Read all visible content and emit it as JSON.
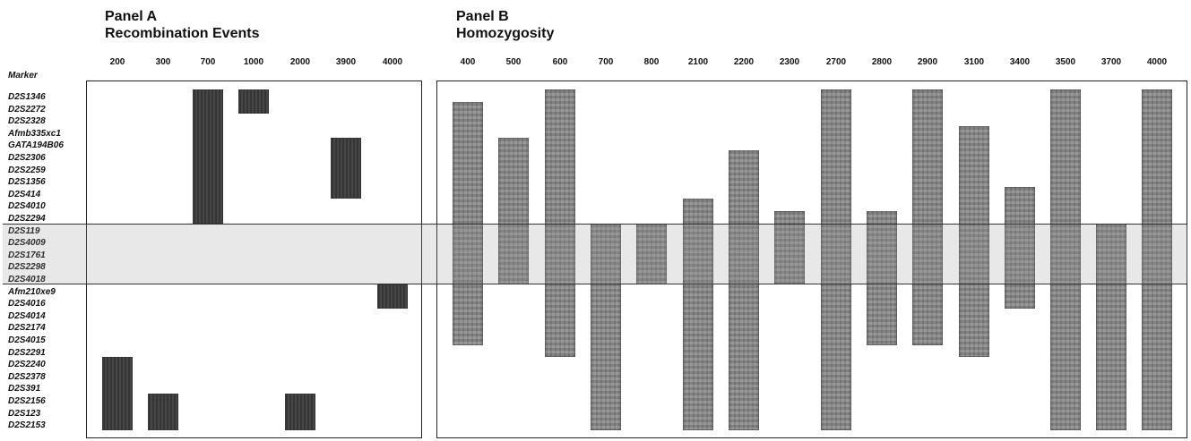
{
  "panel_a": {
    "label": "Panel A",
    "subtitle": "Recombination Events",
    "columns": [
      "200",
      "300",
      "700",
      "1000",
      "2000",
      "3900",
      "4000"
    ],
    "events": [
      {
        "column": "200",
        "from": "D2S2240",
        "to": "D2S2153"
      },
      {
        "column": "300",
        "from": "D2S2156",
        "to": "D2S2153"
      },
      {
        "column": "700",
        "from": "D2S1346",
        "to": "D2S2294"
      },
      {
        "column": "1000",
        "from": "D2S1346",
        "to": "D2S2272"
      },
      {
        "column": "2000",
        "from": "D2S2156",
        "to": "D2S2153"
      },
      {
        "column": "3900",
        "from": "GATA194B06",
        "to": "D2S414"
      },
      {
        "column": "4000",
        "from": "Afm210xe9",
        "to": "D2S4016"
      }
    ]
  },
  "panel_b": {
    "label": "Panel B",
    "subtitle": "Homozygosity",
    "columns": [
      "400",
      "500",
      "600",
      "700",
      "800",
      "2100",
      "2200",
      "2300",
      "2700",
      "2800",
      "2900",
      "3100",
      "3400",
      "3500",
      "3700",
      "4000"
    ],
    "segments": [
      {
        "column": "400",
        "from": "D2S2272",
        "to": "D2S4015"
      },
      {
        "column": "500",
        "from": "GATA194B06",
        "to": "D2S4018"
      },
      {
        "column": "600",
        "from": "D2S1346",
        "to": "D2S2291"
      },
      {
        "column": "700",
        "from": "D2S119",
        "to": "D2S2153"
      },
      {
        "column": "800",
        "from": "D2S119",
        "to": "D2S4018"
      },
      {
        "column": "2100",
        "from": "D2S4010",
        "to": "D2S2153"
      },
      {
        "column": "2200",
        "from": "D2S2306",
        "to": "D2S2153"
      },
      {
        "column": "2300",
        "from": "D2S2294",
        "to": "D2S4018"
      },
      {
        "column": "2700",
        "from": "D2S1346",
        "to": "D2S2153"
      },
      {
        "column": "2800",
        "from": "D2S2294",
        "to": "D2S4015"
      },
      {
        "column": "2900",
        "from": "D2S1346",
        "to": "D2S4015"
      },
      {
        "column": "3100",
        "from": "Afmb335xc1",
        "to": "D2S2291"
      },
      {
        "column": "3400",
        "from": "D2S414",
        "to": "D2S4016"
      },
      {
        "column": "3500",
        "from": "D2S1346",
        "to": "D2S2153"
      },
      {
        "column": "3700",
        "from": "D2S119",
        "to": "D2S2153"
      },
      {
        "column": "4000",
        "from": "D2S1346",
        "to": "D2S2153"
      }
    ]
  },
  "marker_header": "Marker",
  "markers": [
    "D2S1346",
    "D2S2272",
    "D2S2328",
    "Afmb335xc1",
    "GATA194B06",
    "D2S2306",
    "D2S2259",
    "D2S1356",
    "D2S414",
    "D2S4010",
    "D2S2294",
    "D2S119",
    "D2S4009",
    "D2S1761",
    "D2S2298",
    "D2S4018",
    "Afm210xe9",
    "D2S4016",
    "D2S4014",
    "D2S2174",
    "D2S4015",
    "D2S2291",
    "D2S2240",
    "D2S2378",
    "D2S391",
    "D2S2156",
    "D2S123",
    "D2S2153"
  ],
  "shared_interval": {
    "from": "D2S119",
    "to": "D2S4018"
  },
  "colors": {
    "event": "#3c3c3c",
    "homozygous": "#8a8a8a",
    "band": "#d6d6d6"
  }
}
